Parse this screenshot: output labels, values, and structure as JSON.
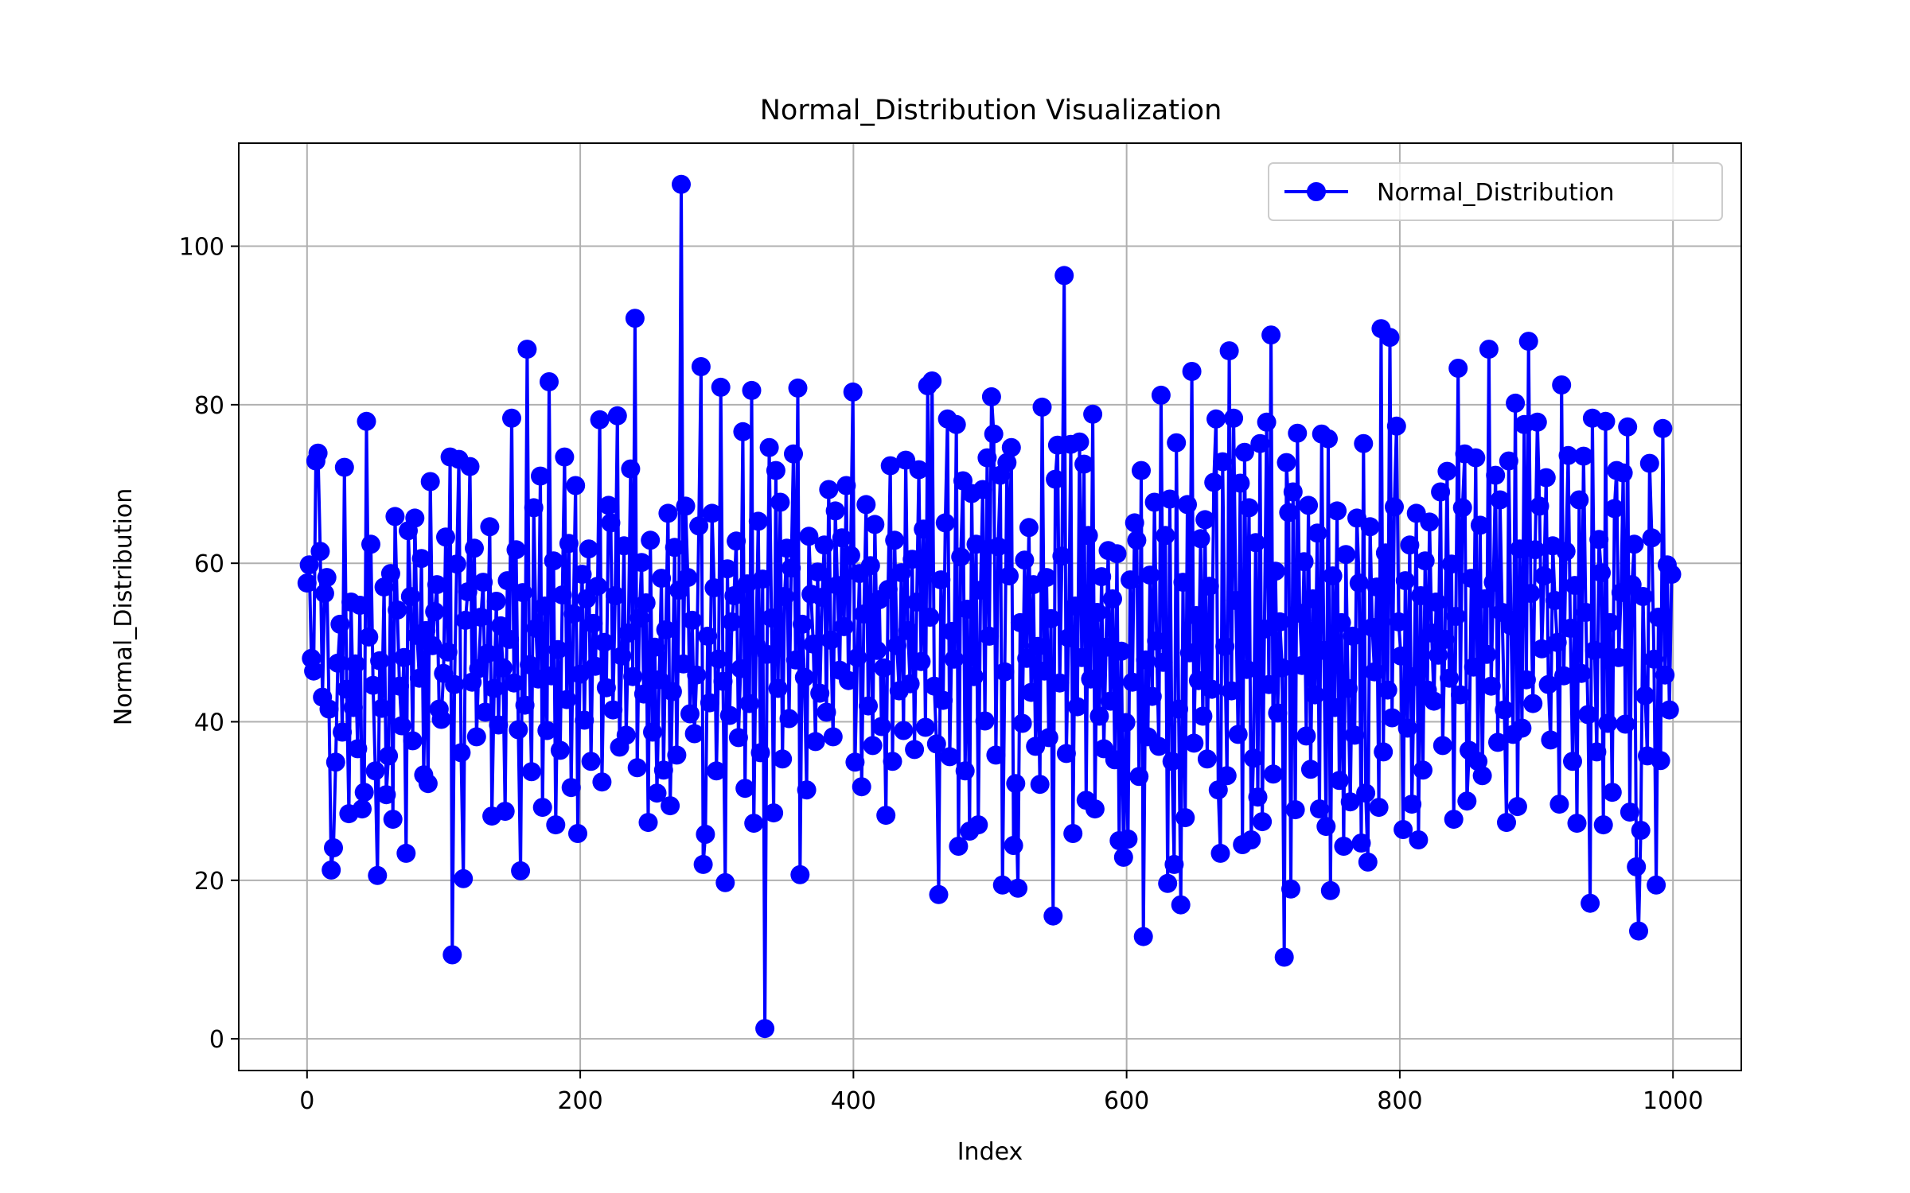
{
  "chart_data": {
    "type": "line",
    "title": "Normal_Distribution Visualization",
    "xlabel": "Index",
    "ylabel": "Normal_Distribution",
    "xlim": [
      -50,
      1050
    ],
    "ylim": [
      -4,
      113
    ],
    "xticks": [
      0,
      200,
      400,
      600,
      800,
      1000
    ],
    "yticks": [
      0,
      20,
      40,
      60,
      80,
      100
    ],
    "grid": true,
    "legend_placement": "top-right",
    "series": [
      {
        "name": "Normal_Distribution",
        "color": "#0000ff",
        "marker": "circle",
        "values": [
          57.5,
          59.8,
          48.0,
          46.4,
          72.9,
          73.9,
          61.5,
          43.1,
          56.2,
          58.2,
          41.6,
          21.3,
          24.1,
          34.9,
          47.4,
          52.3,
          38.7,
          72.1,
          44.1,
          28.4,
          55.1,
          41.8,
          47.3,
          36.6,
          54.7,
          29.0,
          31.1,
          77.9,
          50.7,
          62.4,
          44.6,
          33.8,
          20.6,
          47.7,
          41.7,
          57.0,
          30.8,
          35.7,
          58.7,
          27.7,
          65.9,
          54.1,
          44.5,
          39.5,
          48.1,
          23.4,
          64.1,
          55.8,
          37.6,
          65.7,
          50.9,
          45.5,
          60.6,
          33.3,
          51.5,
          32.2,
          70.3,
          49.6,
          53.9,
          57.3,
          41.6,
          40.3,
          46.1,
          63.3,
          48.8,
          73.4,
          10.6,
          44.7,
          59.9,
          73.1,
          36.1,
          20.2,
          52.8,
          56.4,
          72.2,
          45.0,
          61.9,
          38.1,
          46.7,
          53.2,
          57.6,
          41.2,
          48.6,
          64.6,
          28.1,
          44.2,
          55.2,
          39.6,
          52.1,
          46.8,
          28.7,
          57.8,
          50.4,
          78.3,
          44.9,
          61.7,
          39.0,
          21.2,
          56.3,
          42.1,
          87.0,
          47.2,
          33.7,
          67.0,
          51.8,
          45.4,
          71.0,
          29.2,
          54.6,
          38.9,
          82.9,
          45.8,
          60.3,
          27.0,
          49.1,
          36.4,
          56.0,
          73.4,
          42.8,
          62.5,
          31.7,
          53.6,
          69.8,
          25.9,
          46.0,
          58.6,
          40.2,
          55.5,
          61.8,
          35.0,
          52.4,
          47.0,
          57.1,
          78.1,
          32.4,
          50.0,
          44.3,
          67.3,
          65.1,
          41.5,
          55.9,
          78.6,
          36.8,
          48.3,
          62.2,
          38.3,
          51.2,
          71.9,
          45.7,
          90.9,
          34.2,
          53.1,
          60.1,
          43.5,
          55.0,
          27.3,
          62.9,
          38.7,
          49.4,
          31.0,
          45.3,
          58.1,
          33.9,
          51.6,
          66.3,
          29.4,
          43.8,
          62.0,
          35.8,
          56.6,
          107.8,
          47.3,
          67.2,
          58.2,
          41.0,
          52.8,
          38.5,
          45.9,
          64.7,
          84.8,
          22.0,
          25.8,
          50.8,
          42.4,
          66.3,
          56.9,
          33.8,
          47.9,
          82.2,
          45.1,
          19.7,
          59.3,
          40.8,
          52.6,
          55.9,
          62.8,
          38.0,
          46.7,
          76.6,
          31.6,
          57.4,
          42.3,
          81.8,
          27.2,
          49.7,
          65.3,
          36.1,
          58.0,
          1.3,
          48.5,
          74.6,
          53.1,
          28.5,
          71.7,
          44.2,
          67.7,
          35.3,
          55.8,
          61.9,
          40.4,
          59.4,
          73.8,
          47.8,
          82.1,
          20.7,
          52.3,
          45.6,
          31.4,
          63.4,
          56.1,
          49.8,
          37.5,
          58.9,
          43.6,
          55.7,
          62.3,
          41.2,
          69.3,
          50.3,
          38.1,
          66.6,
          57.2,
          46.5,
          63.2,
          52.0,
          69.8,
          45.2,
          61.0,
          81.6,
          34.9,
          48.1,
          58.7,
          31.8,
          53.6,
          67.4,
          42.0,
          59.7,
          37.0,
          64.9,
          49.0,
          55.4,
          39.4,
          46.8,
          28.2,
          56.7,
          72.3,
          35.0,
          62.9,
          49.6,
          43.9,
          58.8,
          38.9,
          73.0,
          51.5,
          44.8,
          60.5,
          36.5,
          55.1,
          71.8,
          47.6,
          64.3,
          39.3,
          82.4,
          53.2,
          83.0,
          44.5,
          37.2,
          18.2,
          57.9,
          42.7,
          65.1,
          78.2,
          35.6,
          51.4,
          47.9,
          77.5,
          24.3,
          60.8,
          70.4,
          33.8,
          54.2,
          26.2,
          68.8,
          45.7,
          62.4,
          27.0,
          56.6,
          69.3,
          40.1,
          73.3,
          50.8,
          81.0,
          76.3,
          35.8,
          62.1,
          71.1,
          19.4,
          46.3,
          72.7,
          58.4,
          74.6,
          24.4,
          32.2,
          19.0,
          52.5,
          39.8,
          60.4,
          48.0,
          64.5,
          43.7,
          57.3,
          36.9,
          49.5,
          32.1,
          79.7,
          46.4,
          58.2,
          38.0,
          53.0,
          15.5,
          70.6,
          74.9,
          44.9,
          60.9,
          96.3,
          36.0,
          50.6,
          75.0,
          25.9,
          54.6,
          41.9,
          75.3,
          48.1,
          72.5,
          30.1,
          63.5,
          45.4,
          78.8,
          29.0,
          53.8,
          40.7,
          58.3,
          36.6,
          49.4,
          61.6,
          42.6,
          55.5,
          35.2,
          61.2,
          25.0,
          48.9,
          22.9,
          39.9,
          25.2,
          57.9,
          45.0,
          65.1,
          62.9,
          33.1,
          71.7,
          12.9,
          47.8,
          38.1,
          58.5,
          43.2,
          67.7,
          50.2,
          36.9,
          81.2,
          47.5,
          63.5,
          19.6,
          68.1,
          35.0,
          22.0,
          75.2,
          41.6,
          16.9,
          57.6,
          27.9,
          67.4,
          48.7,
          84.2,
          37.3,
          53.4,
          45.2,
          63.1,
          40.7,
          65.5,
          35.3,
          57.1,
          44.1,
          70.2,
          78.2,
          31.4,
          23.4,
          72.8,
          49.5,
          33.2,
          86.8,
          43.9,
          78.3,
          55.3,
          38.4,
          70.1,
          24.5,
          74.0,
          46.6,
          67.0,
          25.1,
          35.4,
          62.6,
          30.5,
          75.1,
          27.4,
          51.7,
          77.8,
          44.7,
          88.8,
          33.4,
          59.0,
          41.1,
          52.6,
          46.8,
          10.3,
          72.7,
          66.4,
          18.9,
          69.0,
          28.9,
          76.4,
          53.7,
          47.1,
          60.2,
          38.2,
          67.3,
          34.0,
          55.5,
          43.4,
          63.8,
          29.0,
          76.3,
          49.0,
          26.8,
          75.7,
          18.7,
          58.4,
          41.8,
          66.6,
          32.6,
          52.5,
          24.3,
          61.1,
          44.2,
          29.9,
          50.8,
          38.3,
          65.7,
          57.5,
          24.7,
          75.1,
          31.0,
          22.3,
          64.6,
          51.9,
          46.3,
          57.0,
          29.2,
          89.6,
          36.2,
          61.3,
          44.0,
          88.5,
          40.5,
          67.1,
          77.3,
          52.6,
          48.3,
          26.4,
          57.8,
          39.2,
          62.3,
          29.6,
          45.7,
          66.3,
          25.1,
          55.9,
          33.9,
          60.3,
          44.0,
          65.2,
          51.2,
          42.6,
          55.1,
          48.4,
          69.0,
          37.0,
          50.4,
          71.6,
          45.5,
          59.9,
          27.7,
          53.3,
          84.6,
          43.4,
          67.0,
          73.8,
          30.0,
          36.4,
          58.1,
          46.9,
          73.3,
          35.0,
          64.8,
          33.2,
          55.5,
          48.5,
          87.0,
          44.5,
          57.6,
          71.1,
          37.4,
          68.0,
          53.8,
          41.5,
          27.3,
          72.9,
          52.1,
          38.4,
          80.2,
          29.3,
          61.8,
          39.2,
          77.5,
          45.3,
          88.0,
          56.2,
          42.3,
          61.7,
          77.8,
          67.2,
          49.2,
          58.4,
          70.8,
          44.7,
          37.7,
          62.2,
          55.3,
          50.0,
          29.6,
          82.5,
          45.8,
          61.5,
          73.6,
          51.8,
          35.0,
          57.2,
          27.2,
          68.0,
          46.1,
          73.5,
          53.8,
          40.9,
          17.1,
          78.3,
          49.0,
          36.2,
          63.0,
          58.8,
          27.0,
          77.9,
          39.8,
          52.5,
          31.1,
          66.9,
          71.7,
          48.1,
          56.3,
          71.4,
          39.7,
          77.2,
          28.6,
          57.3,
          62.4,
          21.7,
          13.6,
          26.3,
          55.8,
          43.3,
          35.7,
          72.6,
          63.2,
          47.9,
          19.4,
          53.2,
          35.1,
          77.0,
          45.9,
          59.8,
          41.5,
          58.6
        ]
      }
    ]
  }
}
